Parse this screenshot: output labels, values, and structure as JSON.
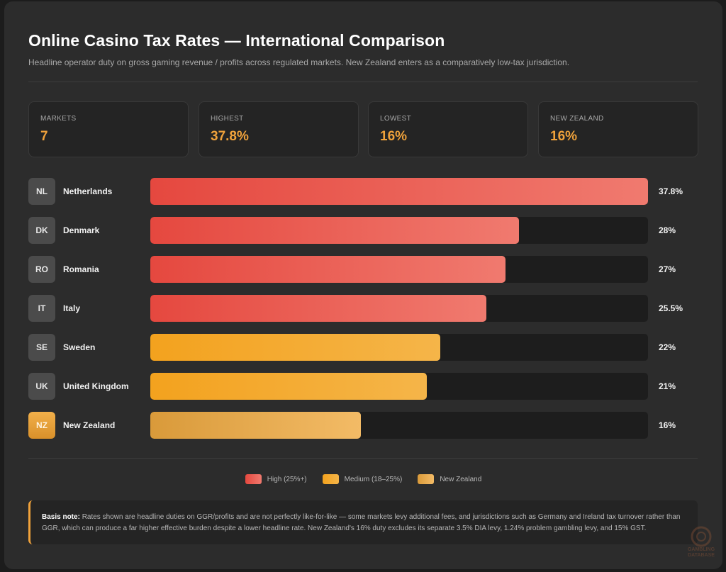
{
  "header": {
    "title": "Online Casino Tax Rates — International Comparison",
    "subtitle": "Headline operator duty on gross gaming revenue / profits across regulated markets. New Zealand enters as a comparatively low-tax jurisdiction."
  },
  "stats": [
    {
      "label": "MARKETS",
      "value": "7"
    },
    {
      "label": "HIGHEST",
      "value": "37.8%"
    },
    {
      "label": "LOWEST",
      "value": "16%"
    },
    {
      "label": "NEW ZEALAND",
      "value": "16%"
    }
  ],
  "chart_data": {
    "type": "bar",
    "orientation": "horizontal",
    "xlim": [
      0,
      37.8
    ],
    "categories": [
      "Netherlands",
      "Denmark",
      "Romania",
      "Italy",
      "Sweden",
      "United Kingdom",
      "New Zealand"
    ],
    "codes": [
      "NL",
      "DK",
      "RO",
      "IT",
      "SE",
      "UK",
      "NZ"
    ],
    "values": [
      37.8,
      28,
      27,
      25.5,
      22,
      21,
      16
    ],
    "value_labels": [
      "37.8%",
      "28%",
      "27%",
      "25.5%",
      "22%",
      "21%",
      "16%"
    ],
    "groups": [
      "high",
      "high",
      "high",
      "high",
      "medium",
      "medium",
      "nz"
    ],
    "group_colors": {
      "high": "#e5483f",
      "medium": "#f3a21e",
      "nz": "#e9a84c"
    },
    "legend": [
      {
        "key": "high",
        "label": "High (25%+)"
      },
      {
        "key": "medium",
        "label": "Medium (18–25%)"
      },
      {
        "key": "nz",
        "label": "New Zealand"
      }
    ],
    "legend_position": "bottom-center"
  },
  "note": {
    "label": "Basis note:",
    "text": "Rates shown are headline duties on GGR/profits and are not perfectly like-for-like — some markets levy additional fees, and jurisdictions such as Germany and Ireland tax turnover rather than GGR, which can produce a far higher effective burden despite a lower headline rate. New Zealand's 16% duty excludes its separate 3.5% DIA levy, 1.24% problem gambling levy, and 15% GST."
  },
  "watermark": {
    "text": "GAMBLING DATABASE"
  },
  "colors": {
    "accent": "#f0a23b",
    "background": "#2c2c2c"
  }
}
